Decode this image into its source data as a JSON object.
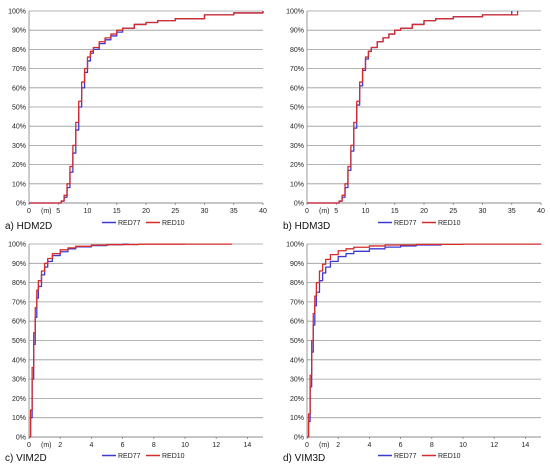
{
  "chart_data": [
    {
      "type": "line",
      "label": "a) HDM2D",
      "x_unit_label": "(m)",
      "xlim": [
        0,
        40
      ],
      "x_ticks": [
        0,
        5,
        10,
        15,
        20,
        25,
        30,
        35,
        40
      ],
      "ylim": [
        0,
        100
      ],
      "y_ticks": [
        0,
        10,
        20,
        30,
        40,
        50,
        60,
        70,
        80,
        90,
        100
      ],
      "grid": "horizontal",
      "legend_position": "bottom",
      "series": [
        {
          "name": "RED77",
          "color": "#3b3bd4",
          "x": [
            0,
            5,
            5.5,
            6,
            6.5,
            7,
            7.5,
            8,
            8.5,
            9,
            9.5,
            10,
            10.5,
            11,
            12,
            13,
            14,
            15,
            16,
            18,
            20,
            22,
            25,
            30,
            35,
            40
          ],
          "y": [
            0,
            0,
            1,
            3,
            8,
            16,
            26,
            38,
            50,
            60,
            68,
            74,
            78,
            80,
            83,
            85,
            87,
            89,
            91,
            93,
            94,
            95,
            96,
            98,
            99,
            100
          ]
        },
        {
          "name": "RED10",
          "color": "#d42b2b",
          "x": [
            0,
            5,
            5.5,
            6,
            6.5,
            7,
            7.5,
            8,
            8.5,
            9,
            9.5,
            10,
            10.5,
            11,
            12,
            13,
            14,
            15,
            16,
            18,
            20,
            22,
            25,
            30,
            35,
            40
          ],
          "y": [
            0,
            0,
            1,
            4,
            10,
            19,
            30,
            42,
            53,
            63,
            70,
            76,
            79,
            81,
            84,
            86,
            88,
            90,
            91,
            93,
            94,
            95,
            96,
            98,
            99,
            100
          ]
        }
      ]
    },
    {
      "type": "line",
      "label": "b) HDM3D",
      "x_unit_label": "(m)",
      "xlim": [
        0,
        40
      ],
      "x_ticks": [
        0,
        5,
        10,
        15,
        20,
        25,
        30,
        35,
        40
      ],
      "ylim": [
        0,
        100
      ],
      "y_ticks": [
        0,
        10,
        20,
        30,
        40,
        50,
        60,
        70,
        80,
        90,
        100
      ],
      "grid": "horizontal",
      "legend_position": "bottom",
      "series": [
        {
          "name": "RED77",
          "color": "#3b3bd4",
          "x": [
            0,
            5,
            5.5,
            6,
            6.5,
            7,
            7.5,
            8,
            8.5,
            9,
            9.5,
            10,
            10.5,
            11,
            12,
            13,
            14,
            15,
            16,
            18,
            20,
            22,
            25,
            30,
            35
          ],
          "y": [
            0,
            0,
            1,
            3,
            8,
            17,
            27,
            39,
            51,
            61,
            69,
            75,
            79,
            81,
            84,
            86,
            88,
            90,
            91,
            93,
            95,
            96,
            97,
            98,
            100
          ]
        },
        {
          "name": "RED10",
          "color": "#d42b2b",
          "x": [
            0,
            5,
            5.5,
            6,
            6.5,
            7,
            7.5,
            8,
            8.5,
            9,
            9.5,
            10,
            10.5,
            11,
            12,
            13,
            14,
            15,
            16,
            18,
            20,
            22,
            25,
            30,
            36
          ],
          "y": [
            0,
            0,
            1,
            4,
            10,
            19,
            30,
            42,
            53,
            63,
            70,
            76,
            79,
            81,
            84,
            86,
            88,
            90,
            91,
            93,
            95,
            96,
            97,
            98,
            100
          ]
        }
      ]
    },
    {
      "type": "line",
      "label": "c) VIM2D",
      "x_unit_label": "(m)",
      "xlim": [
        0,
        15
      ],
      "x_ticks": [
        0,
        2,
        4,
        6,
        8,
        10,
        12,
        14
      ],
      "ylim": [
        0,
        100
      ],
      "y_ticks": [
        0,
        10,
        20,
        30,
        40,
        50,
        60,
        70,
        80,
        90,
        100
      ],
      "grid": "horizontal",
      "legend_position": "bottom",
      "series": [
        {
          "name": "RED77",
          "color": "#3b3bd4",
          "x": [
            0,
            0.1,
            0.2,
            0.3,
            0.4,
            0.5,
            0.6,
            0.8,
            1.0,
            1.2,
            1.5,
            2.0,
            2.5,
            3.0,
            4.0,
            5.0,
            6.0,
            6.4
          ],
          "y": [
            0,
            10,
            30,
            48,
            62,
            72,
            78,
            84,
            88,
            91,
            94,
            96,
            97.5,
            98.5,
            99.2,
            99.6,
            99.9,
            100
          ]
        },
        {
          "name": "RED10",
          "color": "#d42b2b",
          "x": [
            0,
            0.1,
            0.2,
            0.3,
            0.4,
            0.5,
            0.6,
            0.8,
            1.0,
            1.2,
            1.5,
            2.0,
            2.5,
            3.0,
            4.0,
            5.0,
            7.0,
            10.0,
            13.0
          ],
          "y": [
            0,
            14,
            36,
            54,
            67,
            76,
            81,
            86,
            90,
            92.5,
            95,
            97,
            98,
            98.8,
            99.4,
            99.7,
            99.9,
            99.95,
            100
          ]
        }
      ]
    },
    {
      "type": "line",
      "label": "d) VIM3D",
      "x_unit_label": "(m)",
      "xlim": [
        0,
        15
      ],
      "x_ticks": [
        0,
        2,
        4,
        6,
        8,
        10,
        12,
        14
      ],
      "ylim": [
        0,
        100
      ],
      "y_ticks": [
        0,
        10,
        20,
        30,
        40,
        50,
        60,
        70,
        80,
        90,
        100
      ],
      "grid": "horizontal",
      "legend_position": "bottom",
      "series": [
        {
          "name": "RED77",
          "color": "#3b3bd4",
          "x": [
            0,
            0.1,
            0.2,
            0.3,
            0.4,
            0.5,
            0.6,
            0.8,
            1.0,
            1.2,
            1.5,
            2.0,
            2.5,
            3.0,
            4.0,
            5.0,
            6.0,
            7.0,
            8.6
          ],
          "y": [
            0,
            8,
            26,
            44,
            58,
            68,
            75,
            81,
            85,
            88,
            91,
            93.5,
            95,
            96.2,
            97.5,
            98.4,
            99,
            99.5,
            100
          ]
        },
        {
          "name": "RED10",
          "color": "#d42b2b",
          "x": [
            0,
            0.1,
            0.2,
            0.3,
            0.4,
            0.5,
            0.6,
            0.8,
            1.0,
            1.2,
            1.5,
            2.0,
            2.5,
            3.0,
            4.0,
            5.0,
            7.0,
            10.0,
            15.0
          ],
          "y": [
            0,
            12,
            32,
            50,
            64,
            73,
            80,
            86,
            89.5,
            92,
            94.5,
            96.5,
            97.5,
            98.3,
            99,
            99.5,
            99.8,
            99.95,
            100
          ]
        }
      ]
    }
  ]
}
